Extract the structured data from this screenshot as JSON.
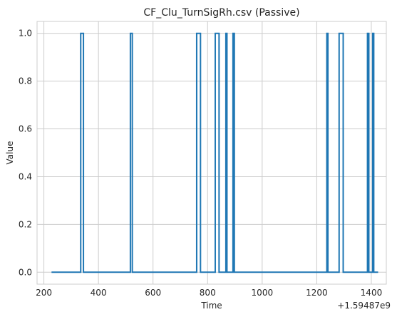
{
  "chart_data": {
    "type": "line",
    "title": "CF_Clu_TurnSigRh.csv (Passive)",
    "xlabel": "Time",
    "ylabel": "Value",
    "x_offset_label": "+1.59487e9",
    "xlim": [
      175,
      1455
    ],
    "ylim": [
      -0.05,
      1.05
    ],
    "x_ticks": [
      200,
      400,
      600,
      800,
      1000,
      1200,
      1400
    ],
    "y_ticks": [
      0.0,
      0.2,
      0.4,
      0.6,
      0.8,
      1.0
    ],
    "y_tick_labels": [
      "0.0",
      "0.2",
      "0.4",
      "0.6",
      "0.8",
      "1.0"
    ],
    "grid": true,
    "series": [
      {
        "color": "#1f77b4",
        "x": [
          228,
          335,
          335,
          345,
          345,
          517,
          517,
          524,
          524,
          760,
          760,
          774,
          774,
          828,
          828,
          842,
          842,
          867,
          867,
          871,
          871,
          893,
          893,
          898,
          898,
          1237,
          1237,
          1241,
          1241,
          1282,
          1282,
          1297,
          1297,
          1386,
          1386,
          1391,
          1391,
          1405,
          1405,
          1409,
          1409,
          1425
        ],
        "y": [
          0,
          0,
          1,
          1,
          0,
          0,
          1,
          1,
          0,
          0,
          1,
          1,
          0,
          0,
          1,
          1,
          0,
          0,
          1,
          1,
          0,
          0,
          1,
          1,
          0,
          0,
          1,
          1,
          0,
          0,
          1,
          1,
          0,
          0,
          1,
          1,
          0,
          0,
          1,
          1,
          0,
          0
        ]
      }
    ]
  }
}
